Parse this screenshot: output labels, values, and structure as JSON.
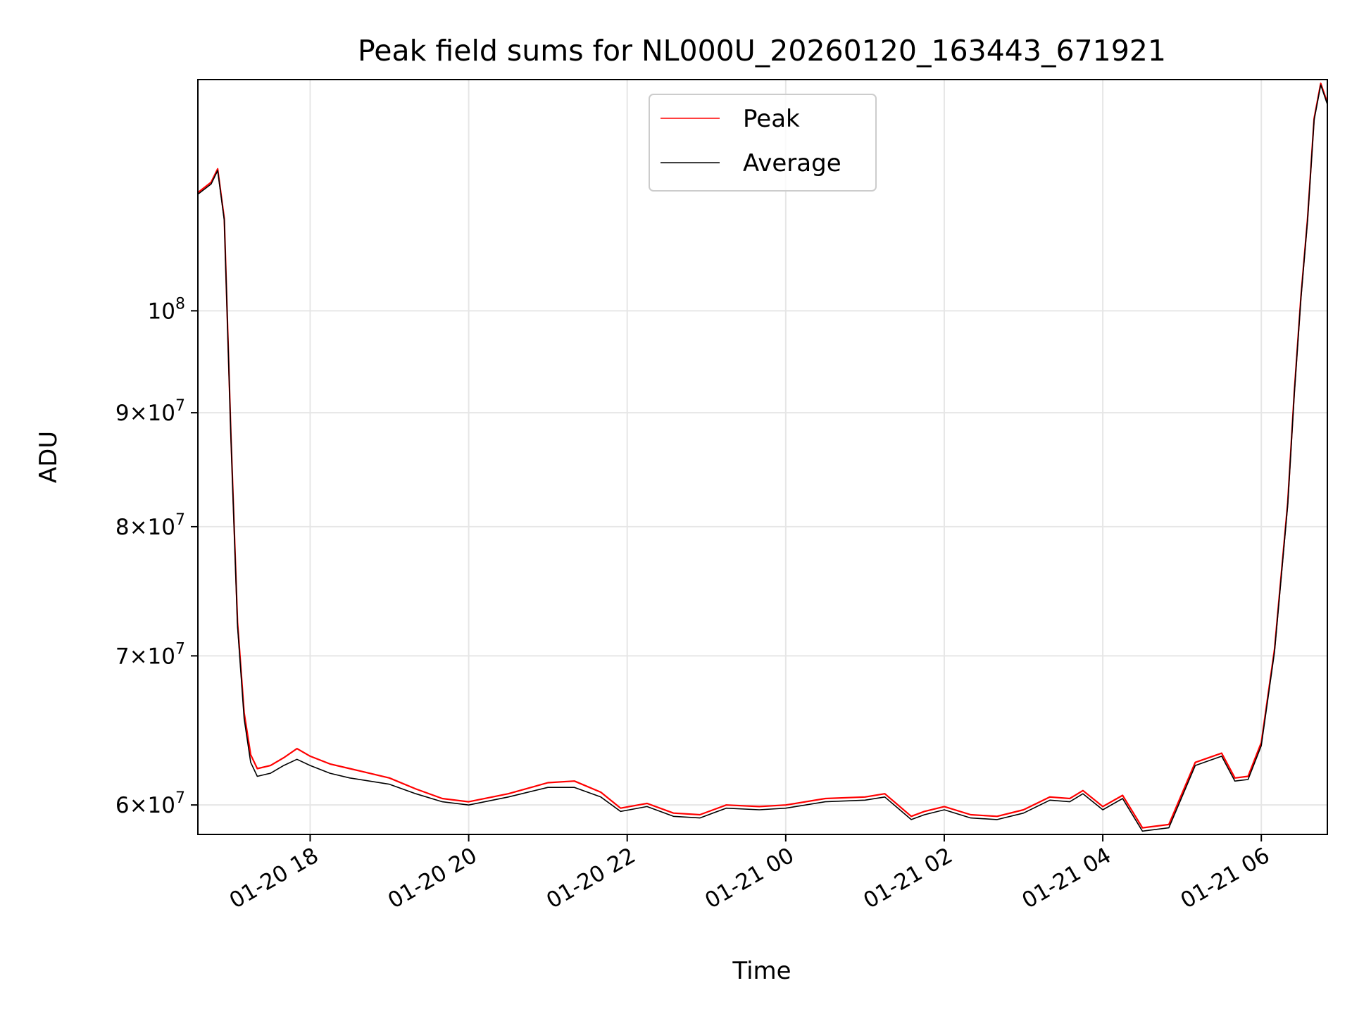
{
  "chart_data": {
    "type": "line",
    "title": "Peak field sums for NL000U_20260120_163443_671921",
    "xlabel": "Time",
    "ylabel": "ADU",
    "yscale": "log",
    "ylim": [
      58200000,
      127000000
    ],
    "xlim": [
      "2026-01-20 16:35",
      "2026-01-21 06:50"
    ],
    "grid": true,
    "legend": "upper center",
    "x_ticks": [
      "01-20 18",
      "01-20 20",
      "01-20 22",
      "01-21 00",
      "01-21 02",
      "01-21 04",
      "01-21 06"
    ],
    "y_ticks": [
      {
        "value": 60000000,
        "mantissa": "6",
        "exp": "7"
      },
      {
        "value": 70000000,
        "mantissa": "7",
        "exp": "7"
      },
      {
        "value": 80000000,
        "mantissa": "8",
        "exp": "7"
      },
      {
        "value": 90000000,
        "mantissa": "9",
        "exp": "7"
      },
      {
        "value": 100000000,
        "mantissa": "",
        "exp": "8"
      }
    ],
    "x": [
      "2026-01-20 16:35",
      "2026-01-20 16:45",
      "2026-01-20 16:50",
      "2026-01-20 16:55",
      "2026-01-20 17:00",
      "2026-01-20 17:05",
      "2026-01-20 17:10",
      "2026-01-20 17:15",
      "2026-01-20 17:20",
      "2026-01-20 17:30",
      "2026-01-20 17:40",
      "2026-01-20 17:50",
      "2026-01-20 18:00",
      "2026-01-20 18:15",
      "2026-01-20 18:30",
      "2026-01-20 19:00",
      "2026-01-20 19:20",
      "2026-01-20 19:40",
      "2026-01-20 20:00",
      "2026-01-20 20:30",
      "2026-01-20 21:00",
      "2026-01-20 21:20",
      "2026-01-20 21:40",
      "2026-01-20 21:55",
      "2026-01-20 22:15",
      "2026-01-20 22:35",
      "2026-01-20 22:55",
      "2026-01-20 23:15",
      "2026-01-20 23:40",
      "2026-01-21 00:00",
      "2026-01-21 00:30",
      "2026-01-21 01:00",
      "2026-01-21 01:15",
      "2026-01-21 01:35",
      "2026-01-21 01:45",
      "2026-01-21 02:00",
      "2026-01-21 02:20",
      "2026-01-21 02:40",
      "2026-01-21 03:00",
      "2026-01-21 03:20",
      "2026-01-21 03:35",
      "2026-01-21 03:45",
      "2026-01-21 04:00",
      "2026-01-21 04:15",
      "2026-01-21 04:30",
      "2026-01-21 04:50",
      "2026-01-21 05:10",
      "2026-01-21 05:30",
      "2026-01-21 05:40",
      "2026-01-21 05:50",
      "2026-01-21 06:00",
      "2026-01-21 06:10",
      "2026-01-21 06:20",
      "2026-01-21 06:25",
      "2026-01-21 06:30",
      "2026-01-21 06:35",
      "2026-01-21 06:40",
      "2026-01-21 06:45",
      "2026-01-21 06:50"
    ],
    "series": [
      {
        "name": "Peak",
        "color": "#ff0000",
        "values": [
          113000000,
          114200000,
          115800000,
          110000000,
          88000000,
          72500000,
          66000000,
          63200000,
          62300000,
          62500000,
          63000000,
          63600000,
          63100000,
          62600000,
          62300000,
          61700000,
          61000000,
          60400000,
          60200000,
          60700000,
          61400000,
          61500000,
          60800000,
          59800000,
          60100000,
          59500000,
          59400000,
          60000000,
          59900000,
          60000000,
          60400000,
          60500000,
          60700000,
          59300000,
          59600000,
          59900000,
          59400000,
          59300000,
          59700000,
          60500000,
          60400000,
          60900000,
          59900000,
          60600000,
          58600000,
          58800000,
          62700000,
          63300000,
          61700000,
          61800000,
          64000000,
          70500000,
          82000000,
          92000000,
          101500000,
          110000000,
          122000000,
          126500000,
          124000000
        ]
      },
      {
        "name": "Average",
        "color": "#000000",
        "values": [
          112800000,
          114000000,
          115600000,
          109800000,
          87800000,
          72200000,
          65600000,
          62700000,
          61800000,
          62000000,
          62500000,
          62900000,
          62500000,
          62000000,
          61700000,
          61300000,
          60700000,
          60200000,
          60000000,
          60500000,
          61100000,
          61100000,
          60500000,
          59600000,
          59900000,
          59300000,
          59200000,
          59800000,
          59700000,
          59800000,
          60200000,
          60300000,
          60500000,
          59100000,
          59400000,
          59700000,
          59200000,
          59100000,
          59500000,
          60300000,
          60200000,
          60700000,
          59700000,
          60400000,
          58400000,
          58600000,
          62500000,
          63100000,
          61500000,
          61600000,
          63800000,
          70300000,
          81800000,
          91800000,
          101300000,
          109800000,
          121800000,
          126300000,
          123800000
        ]
      }
    ]
  }
}
